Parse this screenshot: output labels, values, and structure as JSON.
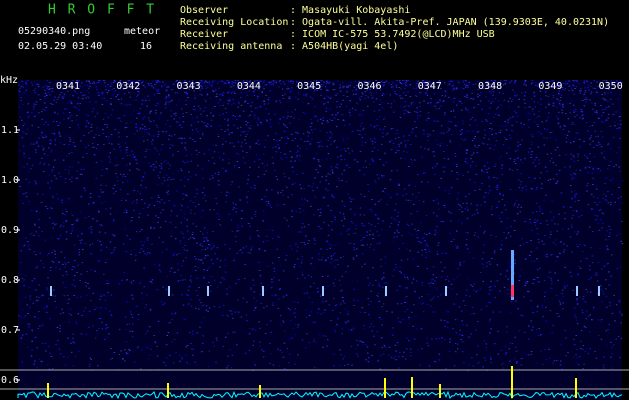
{
  "header": {
    "program": "H R O F F T",
    "file": "05290340.png",
    "count_label": "meteor",
    "datetime": "02.05.29 03:40",
    "count": 16,
    "fields": [
      {
        "label": "Observer",
        "value": ": Masayuki Kobayashi"
      },
      {
        "label": "Receiving Location",
        "value": ": Ogata-vill. Akita-Pref. JAPAN (139.9303E, 40.0231N)"
      },
      {
        "label": "Receiver",
        "value": ": ICOM IC-575 53.7492(@LCD)MHz USB"
      },
      {
        "label": "Receiving antenna",
        "value": ": A504HB(yagi 4el)"
      }
    ]
  },
  "chart_data": {
    "type": "spectrogram",
    "y_label": "kHz",
    "categories": [
      "0341",
      "0342",
      "0343",
      "0344",
      "0345",
      "0346",
      "0347",
      "0348",
      "0349",
      "0350"
    ],
    "ylim": [
      0.56,
      1.2
    ],
    "yticks": [
      {
        "value": 0.6,
        "label": "0.6"
      },
      {
        "value": 0.7,
        "label": "0.7"
      },
      {
        "value": 0.8,
        "label": "0.8"
      },
      {
        "value": 0.9,
        "label": "0.9"
      },
      {
        "value": 1,
        "label": "1.0"
      },
      {
        "value": 1.1,
        "label": "1.1"
      }
    ]
  }
}
